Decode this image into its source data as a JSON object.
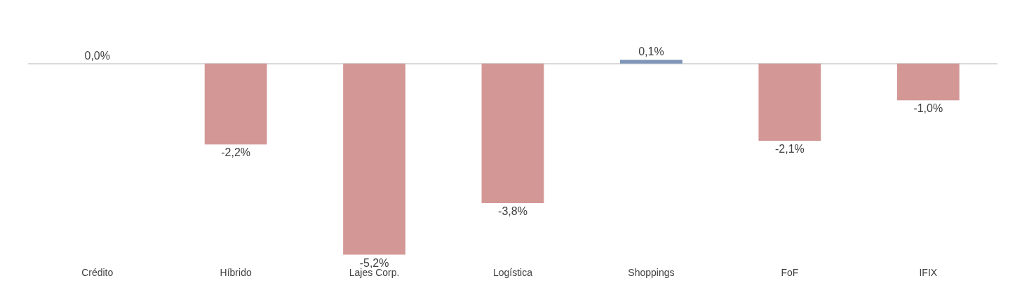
{
  "chart_data": {
    "type": "bar",
    "categories": [
      "Crédito",
      "Híbrido",
      "Lajes Corp.",
      "Logística",
      "Shoppings",
      "FoF",
      "IFIX"
    ],
    "values": [
      0.0,
      -2.2,
      -5.2,
      -3.8,
      0.1,
      -2.1,
      -1.0
    ],
    "value_labels": [
      "0,0%",
      "-2,2%",
      "-5,2%",
      "-3,8%",
      "0,1%",
      "-2,1%",
      "-1,0%"
    ],
    "colors": [
      "#7f96b8",
      "#d39896",
      "#d39896",
      "#d39896",
      "#7f96b8",
      "#d39896",
      "#d39896"
    ],
    "legend": false
  }
}
